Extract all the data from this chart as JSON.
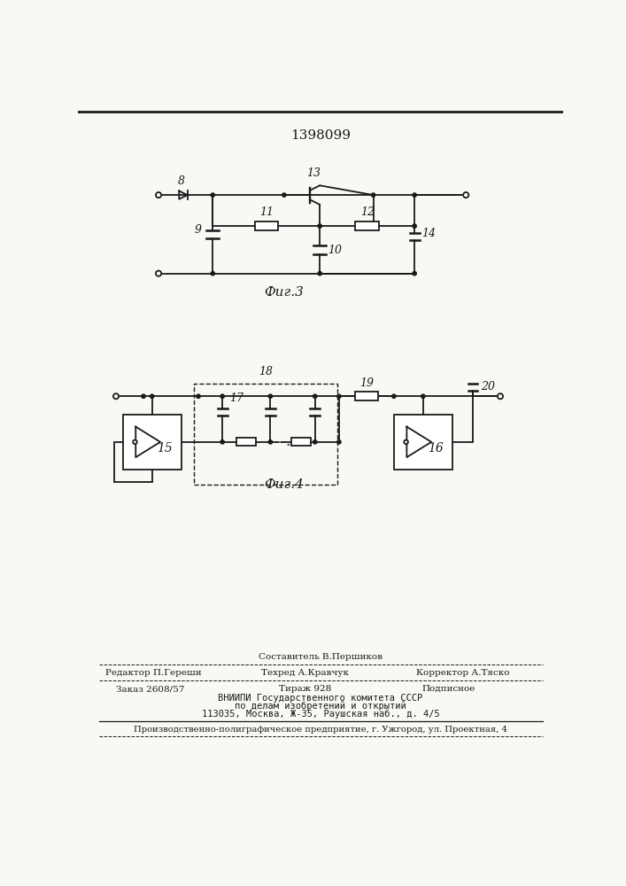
{
  "title": "1398099",
  "fig3_label": "Фиг.3",
  "fig4_label": "Фиг.4",
  "bg_color": "#f8f8f5",
  "line_color": "#1a1a1a",
  "footer_col1_line1": "Редактор П.Гереши",
  "footer_col2_line0": "Составитель В.Першиков",
  "footer_col2_line1": "Техред А.Кравчук",
  "footer_col3_line1": "Корректор А.Тяско",
  "footer_order": "Заказ 2608/57",
  "footer_tiraj": "Тираж 928",
  "footer_podp": "Подписное",
  "footer_vni1": "ВНИИПИ Государственного комитета СССР",
  "footer_vni2": "по делам изобретений и открытий",
  "footer_vni3": "113035, Москва, Ж-35, Раушская наб., д. 4/5",
  "footer_prod": "Производственно-полиграфическое предприятие, г. Ужгород, ул. Проектная, 4"
}
